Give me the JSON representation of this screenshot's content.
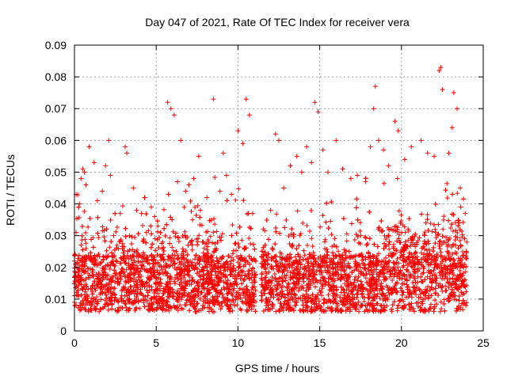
{
  "chart_data": {
    "type": "scatter",
    "title": "Day 047 of 2021, Rate Of TEC Index for receiver vera",
    "xlabel": "GPS time / hours",
    "ylabel": "ROTI / TECUs",
    "xlim": [
      0,
      25
    ],
    "ylim": [
      0,
      0.09
    ],
    "x_ticks": [
      0,
      5,
      10,
      15,
      20,
      25
    ],
    "x_tick_labels": [
      "0",
      "5",
      "10",
      "15",
      "20",
      "25"
    ],
    "y_ticks": [
      0,
      0.01,
      0.02,
      0.03,
      0.04,
      0.05,
      0.06,
      0.07,
      0.08,
      0.09
    ],
    "y_tick_labels": [
      "0",
      "0.01",
      "0.02",
      "0.03",
      "0.04",
      "0.05",
      "0.06",
      "0.07",
      "0.08",
      "0.09"
    ],
    "grid": true,
    "marker": "+",
    "color": "#ff0000",
    "data_gap_hours": [
      11.1,
      11.4
    ],
    "series": [
      {
        "name": "ROTI",
        "points": [
          [
            0.0,
            0.009
          ],
          [
            0.0,
            0.022
          ],
          [
            0.1,
            0.043
          ],
          [
            0.1,
            0.031
          ],
          [
            0.2,
            0.016
          ],
          [
            0.3,
            0.04
          ],
          [
            0.4,
            0.048
          ],
          [
            0.5,
            0.051
          ],
          [
            0.6,
            0.05
          ],
          [
            0.7,
            0.046
          ],
          [
            0.9,
            0.058
          ],
          [
            1.2,
            0.053
          ],
          [
            1.4,
            0.041
          ],
          [
            1.7,
            0.044
          ],
          [
            1.9,
            0.052
          ],
          [
            2.1,
            0.06
          ],
          [
            2.2,
            0.049
          ],
          [
            2.4,
            0.03
          ],
          [
            2.6,
            0.027
          ],
          [
            2.8,
            0.037
          ],
          [
            3.1,
            0.058
          ],
          [
            3.2,
            0.056
          ],
          [
            3.6,
            0.045
          ],
          [
            3.8,
            0.038
          ],
          [
            4.1,
            0.037
          ],
          [
            4.4,
            0.031
          ],
          [
            4.7,
            0.039
          ],
          [
            4.9,
            0.036
          ],
          [
            5.1,
            0.033
          ],
          [
            5.4,
            0.028
          ],
          [
            5.7,
            0.072
          ],
          [
            5.9,
            0.07
          ],
          [
            6.1,
            0.068
          ],
          [
            6.3,
            0.047
          ],
          [
            6.5,
            0.06
          ],
          [
            6.8,
            0.044
          ],
          [
            7.0,
            0.046
          ],
          [
            7.3,
            0.048
          ],
          [
            7.6,
            0.055
          ],
          [
            8.1,
            0.042
          ],
          [
            8.5,
            0.073
          ],
          [
            8.9,
            0.044
          ],
          [
            9.1,
            0.056
          ],
          [
            9.3,
            0.049
          ],
          [
            9.6,
            0.043
          ],
          [
            10.0,
            0.063
          ],
          [
            10.3,
            0.059
          ],
          [
            10.5,
            0.073
          ],
          [
            10.7,
            0.068
          ],
          [
            10.9,
            0.037
          ],
          [
            11.6,
            0.02
          ],
          [
            12.0,
            0.038
          ],
          [
            12.3,
            0.062
          ],
          [
            12.5,
            0.06
          ],
          [
            12.8,
            0.045
          ],
          [
            13.2,
            0.052
          ],
          [
            13.6,
            0.055
          ],
          [
            13.9,
            0.05
          ],
          [
            14.2,
            0.058
          ],
          [
            14.5,
            0.053
          ],
          [
            14.7,
            0.072
          ],
          [
            14.9,
            0.069
          ],
          [
            15.2,
            0.057
          ],
          [
            15.5,
            0.05
          ],
          [
            16.0,
            0.06
          ],
          [
            16.4,
            0.051
          ],
          [
            16.9,
            0.048
          ],
          [
            17.3,
            0.049
          ],
          [
            17.8,
            0.047
          ],
          [
            18.1,
            0.058
          ],
          [
            18.3,
            0.07
          ],
          [
            18.4,
            0.077
          ],
          [
            18.6,
            0.06
          ],
          [
            18.9,
            0.057
          ],
          [
            19.2,
            0.052
          ],
          [
            19.6,
            0.066
          ],
          [
            19.8,
            0.063
          ],
          [
            20.2,
            0.054
          ],
          [
            20.6,
            0.058
          ],
          [
            21.2,
            0.06
          ],
          [
            21.6,
            0.056
          ],
          [
            22.0,
            0.055
          ],
          [
            22.3,
            0.082
          ],
          [
            22.4,
            0.083
          ],
          [
            22.5,
            0.076
          ],
          [
            22.9,
            0.056
          ],
          [
            23.1,
            0.064
          ],
          [
            23.2,
            0.075
          ],
          [
            23.4,
            0.07
          ],
          [
            23.6,
            0.045
          ],
          [
            23.9,
            0.037
          ],
          [
            24.0,
            0.028
          ]
        ]
      }
    ]
  }
}
